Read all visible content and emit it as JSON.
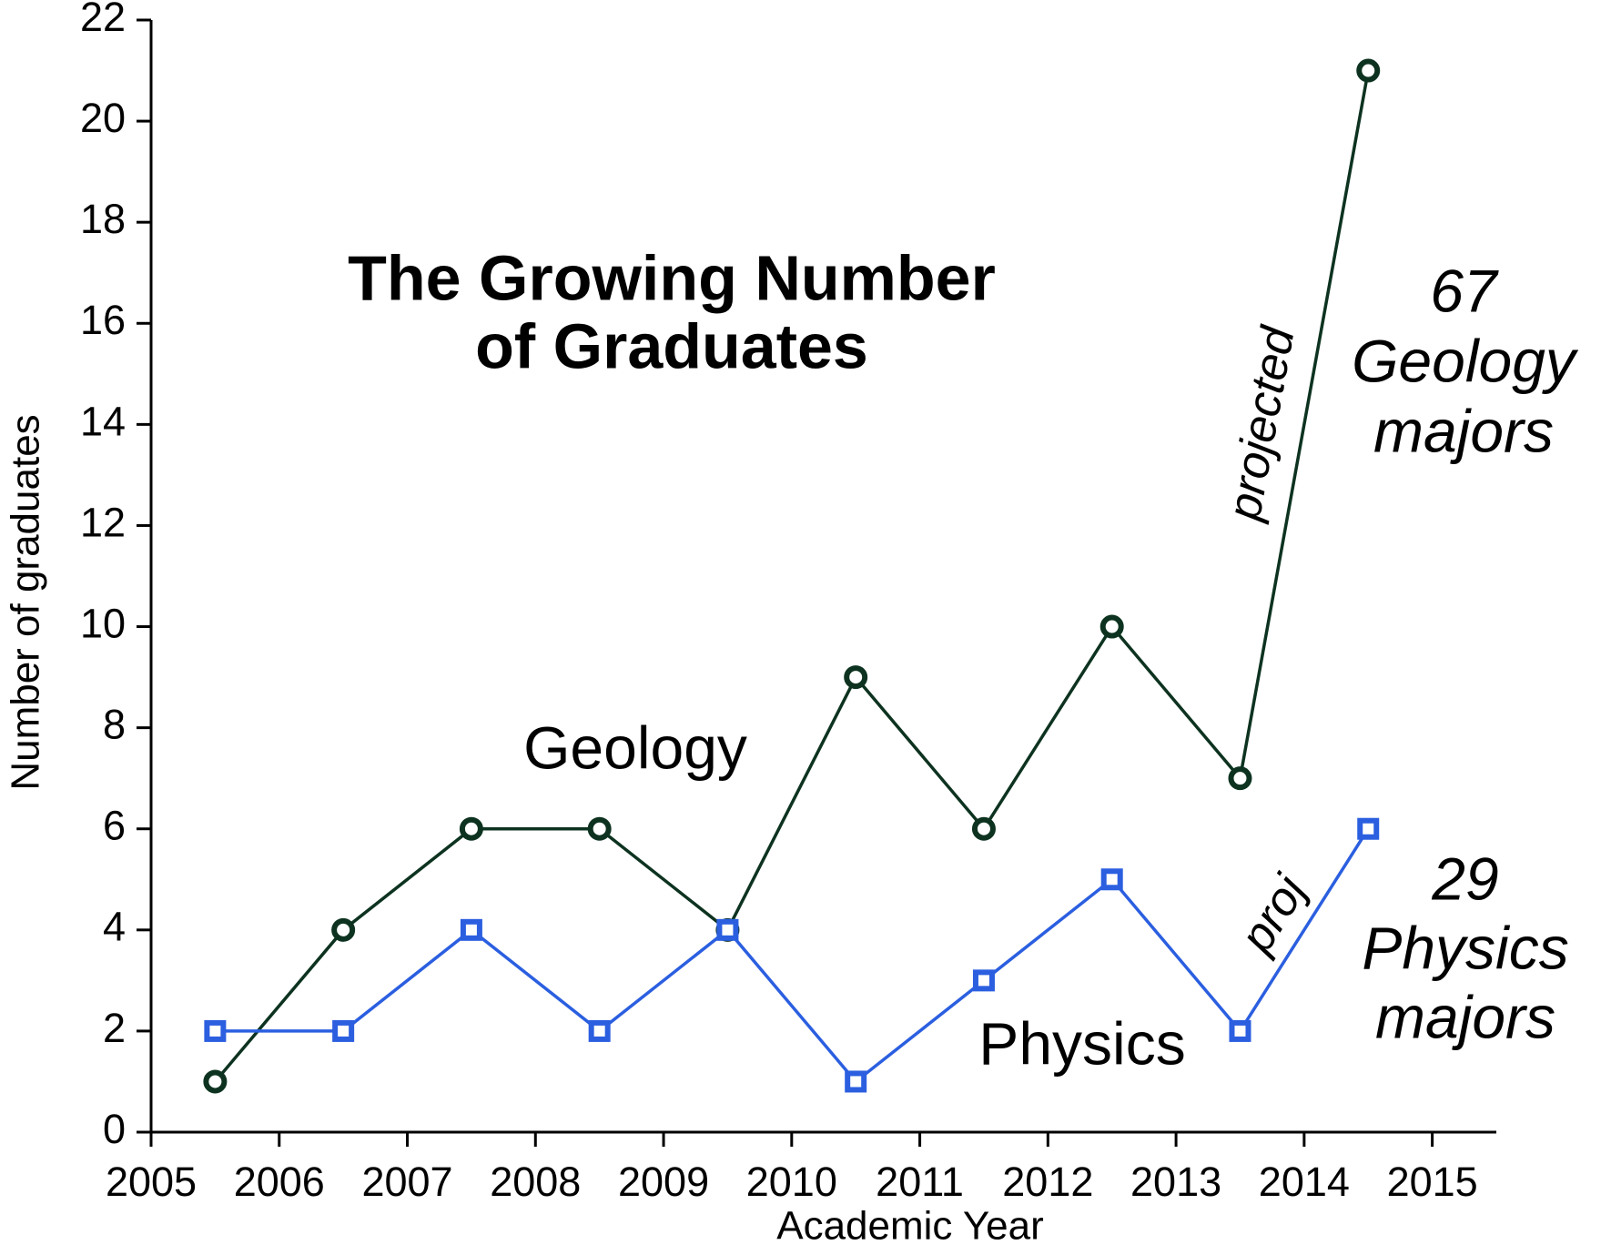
{
  "chart_data": {
    "type": "line",
    "title": [
      "The Growing Number",
      "of Graduates"
    ],
    "x_label": "Academic Year",
    "y_label": "Number of graduates",
    "x": [
      2005.5,
      2006.5,
      2007.5,
      2008.5,
      2009.5,
      2010.5,
      2011.5,
      2012.5,
      2013.5,
      2014.5
    ],
    "series": [
      {
        "name": "Geology",
        "color": "#0d3320",
        "marker": "circle",
        "values": [
          1,
          4,
          6,
          6,
          4,
          9,
          6,
          10,
          7,
          21
        ]
      },
      {
        "name": "Physics",
        "color": "#2b5fe0",
        "marker": "square",
        "values": [
          2,
          2,
          4,
          2,
          4,
          1,
          3,
          5,
          2,
          6
        ]
      }
    ],
    "xlim": [
      2005,
      2015.5
    ],
    "xticks": [
      2005,
      2006,
      2007,
      2008,
      2009,
      2010,
      2011,
      2012,
      2013,
      2014,
      2015
    ],
    "ylim": [
      0,
      22
    ],
    "yticks": [
      0,
      2,
      4,
      6,
      8,
      10,
      12,
      14,
      16,
      18,
      20,
      22
    ],
    "annotations": [
      {
        "text": [
          "projected"
        ]
      },
      {
        "text": [
          "proj"
        ]
      },
      {
        "text": [
          "67",
          "Geology",
          "majors"
        ]
      },
      {
        "text": [
          "29",
          "Physics",
          "majors"
        ]
      }
    ],
    "grid": false
  }
}
